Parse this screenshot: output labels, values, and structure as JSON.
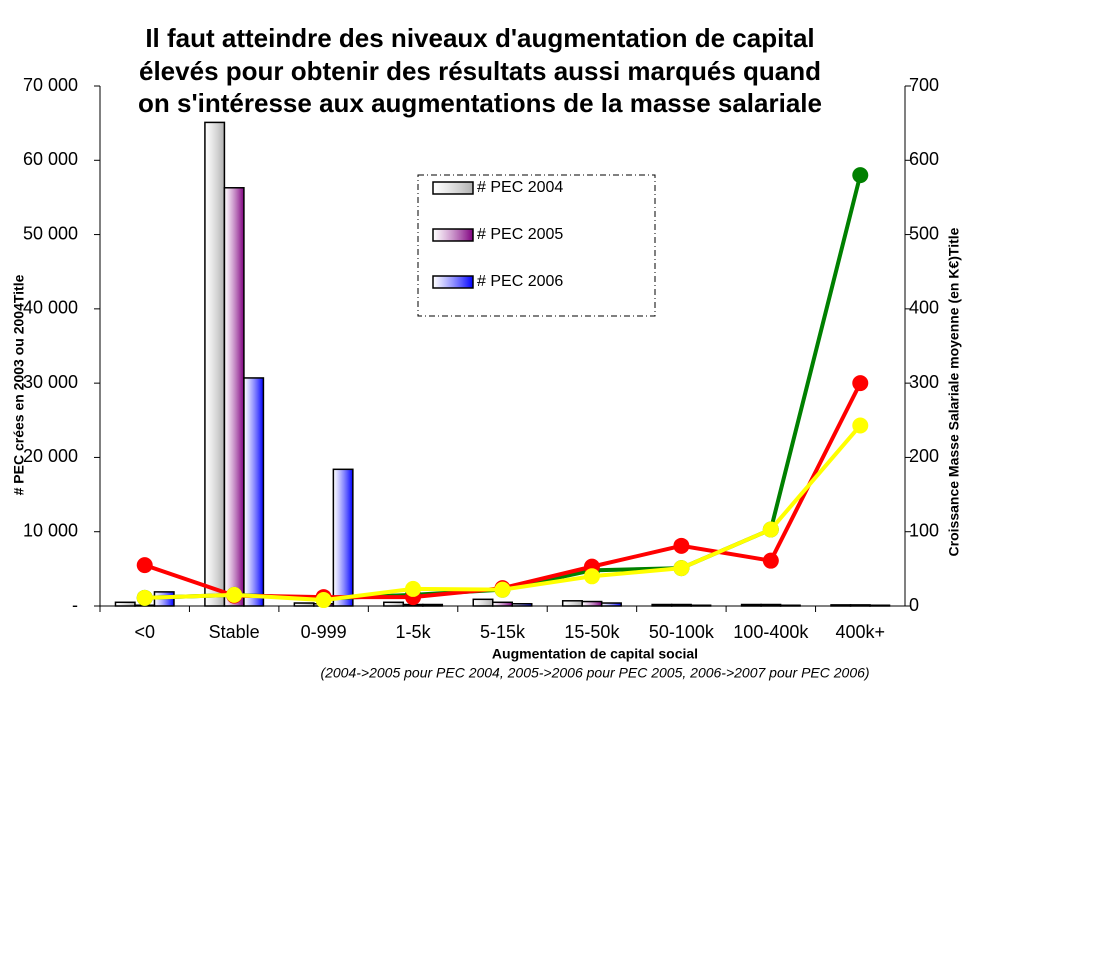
{
  "chart_data": {
    "type": "bar",
    "title": [
      "Il faut atteindre des niveaux d'augmentation de capital",
      "élevés pour obtenir des résultats aussi marqués quand",
      "on s'intéresse aux augmentations de la masse salariale"
    ],
    "x_label": "Augmentation de capital social",
    "x_sublabel": "(2004->2005 pour PEC 2004, 2005->2006 pour PEC 2005, 2006->2007 pour PEC 2006)",
    "y_label": "# PEC crées en 2003 ou 2004Title",
    "y2_label": "Croissance Masse Salariale moyenne (en K€)Title",
    "categories": [
      "<0",
      "Stable",
      "0-999",
      "1-5k",
      "5-15k",
      "15-50k",
      "50-100k",
      "100-400k",
      "400k+"
    ],
    "ylim": [
      0,
      70000
    ],
    "yticks": [
      {
        "value": 0,
        "label": "-"
      },
      {
        "value": 10000,
        "label": "10 000"
      },
      {
        "value": 20000,
        "label": "20 000"
      },
      {
        "value": 30000,
        "label": "30 000"
      },
      {
        "value": 40000,
        "label": "40 000"
      },
      {
        "value": 50000,
        "label": "50 000"
      },
      {
        "value": 60000,
        "label": "60 000"
      },
      {
        "value": 70000,
        "label": "70 000"
      }
    ],
    "y2lim": [
      0,
      700
    ],
    "y2ticks": [
      0,
      100,
      200,
      300,
      400,
      500,
      600,
      700
    ],
    "legend": "top-center",
    "series": [
      {
        "name": "# PEC 2004",
        "type": "bar",
        "color": "#b0b0b0",
        "values": [
          500,
          65100,
          400,
          500,
          900,
          700,
          200,
          200,
          150
        ]
      },
      {
        "name": "# PEC 2005",
        "type": "bar",
        "color": "#800080",
        "values": [
          100,
          56300,
          300,
          200,
          500,
          600,
          200,
          200,
          150
        ]
      },
      {
        "name": "# PEC 2006",
        "type": "bar",
        "color": "#0000ff",
        "values": [
          1900,
          30700,
          18400,
          200,
          300,
          400,
          100,
          100,
          100
        ]
      },
      {
        "type": "line",
        "axis": "y2",
        "color": "#008000",
        "values": [
          11,
          15,
          10,
          15,
          22,
          48,
          51,
          103,
          580
        ]
      },
      {
        "type": "line",
        "axis": "y2",
        "color": "#ff0000",
        "values": [
          55,
          14,
          12,
          12,
          24,
          53,
          81,
          61,
          300
        ]
      },
      {
        "type": "line",
        "axis": "y2",
        "color": "#ffff00",
        "values": [
          11,
          15,
          8,
          23,
          22,
          40,
          51,
          103,
          243
        ]
      }
    ]
  }
}
